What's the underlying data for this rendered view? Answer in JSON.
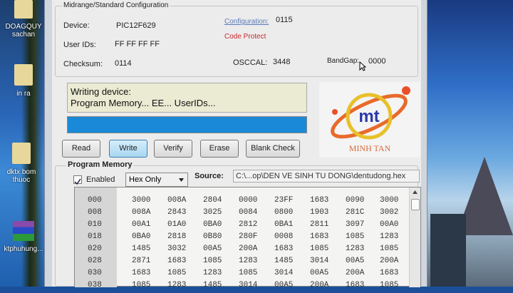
{
  "desktop": {
    "icons": [
      {
        "label": "DOAGQUY sachan"
      },
      {
        "label": "in ra"
      },
      {
        "label": "dktx bom thuoc"
      },
      {
        "label": "ktphuhung..."
      }
    ]
  },
  "config": {
    "group_title": "Midrange/Standard Configuration",
    "device_label": "Device:",
    "device": "PIC12F629",
    "userids_label": "User IDs:",
    "userids": "FF FF FF FF",
    "checksum_label": "Checksum:",
    "checksum": "0114",
    "configuration_label": "Configuration:",
    "configuration": "0115",
    "code_protect": "Code Protect",
    "osccal_label": "OSCCAL:",
    "osccal": "3448",
    "bandgap_label": "BandGap:",
    "bandgap": "0000"
  },
  "status": {
    "line1": "Writing device:",
    "line2": "Program Memory... EE... UserIDs...",
    "progress_percent": 100,
    "progress_color": "#1a8ad8"
  },
  "buttons": {
    "read": "Read",
    "write": "Write",
    "verify": "Verify",
    "erase": "Erase",
    "blank_check": "Blank Check"
  },
  "logo": {
    "mark": "mt",
    "name": "MINH TAN"
  },
  "program_memory": {
    "title": "Program Memory",
    "enabled_label": "Enabled",
    "enabled": true,
    "mode": "Hex Only",
    "source_label": "Source:",
    "source": "C:\\...op\\DEN VE SINH TU DONG\\dentudong.hex",
    "rows": [
      {
        "addr": "000",
        "cells": [
          "3000",
          "008A",
          "2804",
          "0000",
          "23FF",
          "1683",
          "0090",
          "3000"
        ]
      },
      {
        "addr": "008",
        "cells": [
          "008A",
          "2843",
          "3025",
          "0084",
          "0800",
          "1903",
          "281C",
          "3002"
        ]
      },
      {
        "addr": "010",
        "cells": [
          "00A1",
          "01A0",
          "0BA0",
          "2812",
          "0BA1",
          "2811",
          "3097",
          "00A0"
        ]
      },
      {
        "addr": "018",
        "cells": [
          "0BA0",
          "2818",
          "0B80",
          "280F",
          "0008",
          "1683",
          "1085",
          "1283"
        ]
      },
      {
        "addr": "020",
        "cells": [
          "1485",
          "3032",
          "00A5",
          "200A",
          "1683",
          "1085",
          "1283",
          "1085"
        ]
      },
      {
        "addr": "028",
        "cells": [
          "2871",
          "1683",
          "1085",
          "1283",
          "1485",
          "3014",
          "00A5",
          "200A"
        ]
      },
      {
        "addr": "030",
        "cells": [
          "1683",
          "1085",
          "1283",
          "1085",
          "3014",
          "00A5",
          "200A",
          "1683"
        ]
      },
      {
        "addr": "038",
        "cells": [
          "1085",
          "1283",
          "1485",
          "3014",
          "00A5",
          "200A",
          "1683",
          "1085"
        ]
      }
    ]
  }
}
